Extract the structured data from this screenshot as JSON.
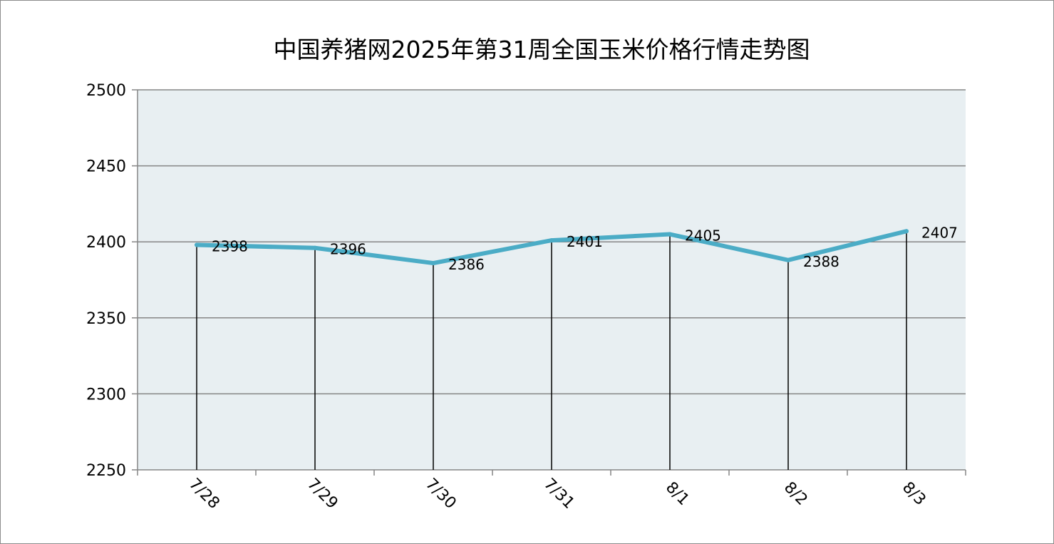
{
  "chart_data": {
    "type": "line",
    "title": "中国养猪网2025年第31周全国玉米价格行情走势图",
    "categories": [
      "7/28",
      "7/29",
      "7/30",
      "7/31",
      "8/1",
      "8/2",
      "8/3"
    ],
    "series": [
      {
        "values": [
          2398,
          2396,
          2386,
          2401,
          2405,
          2388,
          2407
        ]
      }
    ],
    "ylim": [
      2250,
      2500
    ],
    "yticks": [
      2250,
      2300,
      2350,
      2400,
      2450,
      2500
    ],
    "ytick_labels": [
      "2250",
      "2300",
      "2350",
      "2400",
      "2450",
      "2500"
    ],
    "xlabel": "",
    "ylabel": "",
    "grid": true,
    "drop_lines": true,
    "data_labels": true,
    "colors": {
      "line": "#4bacc6",
      "plot_bg": "#e8eff2",
      "grid": "#868686",
      "drop_line": "#000000"
    }
  }
}
